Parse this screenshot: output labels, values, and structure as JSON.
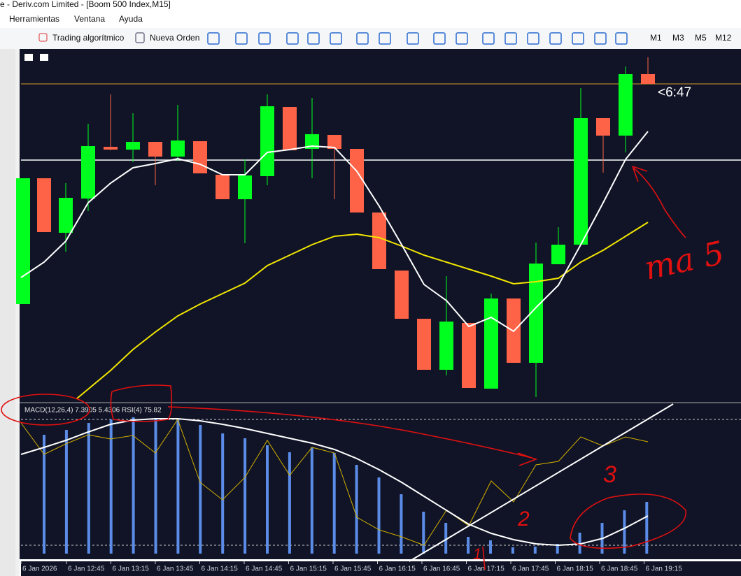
{
  "window": {
    "title": "e - Deriv.com Limited - [Boom 500 Index,M15]"
  },
  "menu": [
    "Herramientas",
    "Ventana",
    "Ayuda"
  ],
  "toolbar": {
    "buttons": [
      "Trading algorítmico",
      "Nueva Orden"
    ],
    "timeframes": [
      "M1",
      "M3",
      "M5",
      "M12"
    ]
  },
  "chart": {
    "countdown": "<6:47",
    "indicator_label": "MACD(12,26,4) 7.3905 5.4306 RSI(4) 75.82",
    "time_labels": [
      "6 Jan 2026",
      "6 Jan 12:45",
      "6 Jan 13:15",
      "6 Jan 13:45",
      "6 Jan 14:15",
      "6 Jan 14:45",
      "6 Jan 15:15",
      "6 Jan 15:45",
      "6 Jan 16:15",
      "6 Jan 16:45",
      "6 Jan 17:15",
      "6 Jan 17:45",
      "6 Jan 18:15",
      "6 Jan 18:45",
      "6 Jan 19:15"
    ]
  },
  "annotations": [
    "ma 5",
    "1",
    "2",
    "3"
  ]
}
